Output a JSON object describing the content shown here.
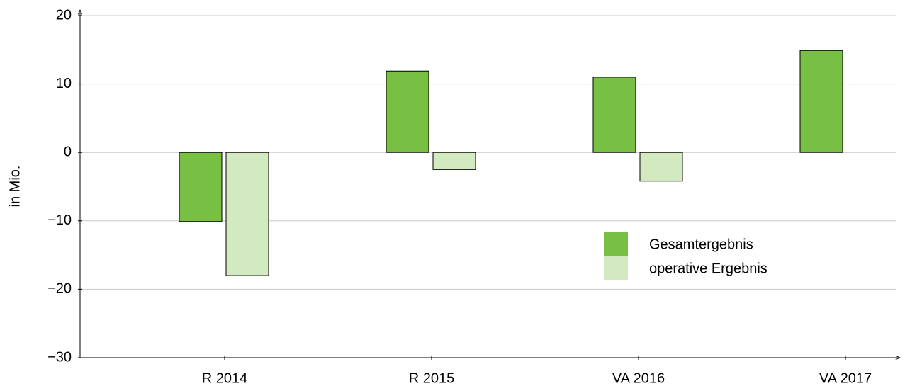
{
  "chart_data": {
    "type": "bar",
    "y_label": "in Mio.",
    "categories": [
      "R 2014",
      "R 2015",
      "VA 2016",
      "VA 2017"
    ],
    "series": [
      {
        "name": "Gesamtergebnis",
        "color": "#77c043",
        "values": [
          -10.1,
          11.9,
          11.0,
          14.9
        ]
      },
      {
        "name": "operative Ergebnis",
        "color": "#d3e9c0",
        "values": [
          -18.0,
          -2.5,
          -4.2,
          0
        ]
      }
    ],
    "ylim": [
      -30,
      20
    ],
    "yticks": [
      {
        "value": -30,
        "label": "−30"
      },
      {
        "value": -20,
        "label": "−20"
      },
      {
        "value": -10,
        "label": "−10"
      },
      0,
      10,
      20
    ],
    "grid": true
  }
}
